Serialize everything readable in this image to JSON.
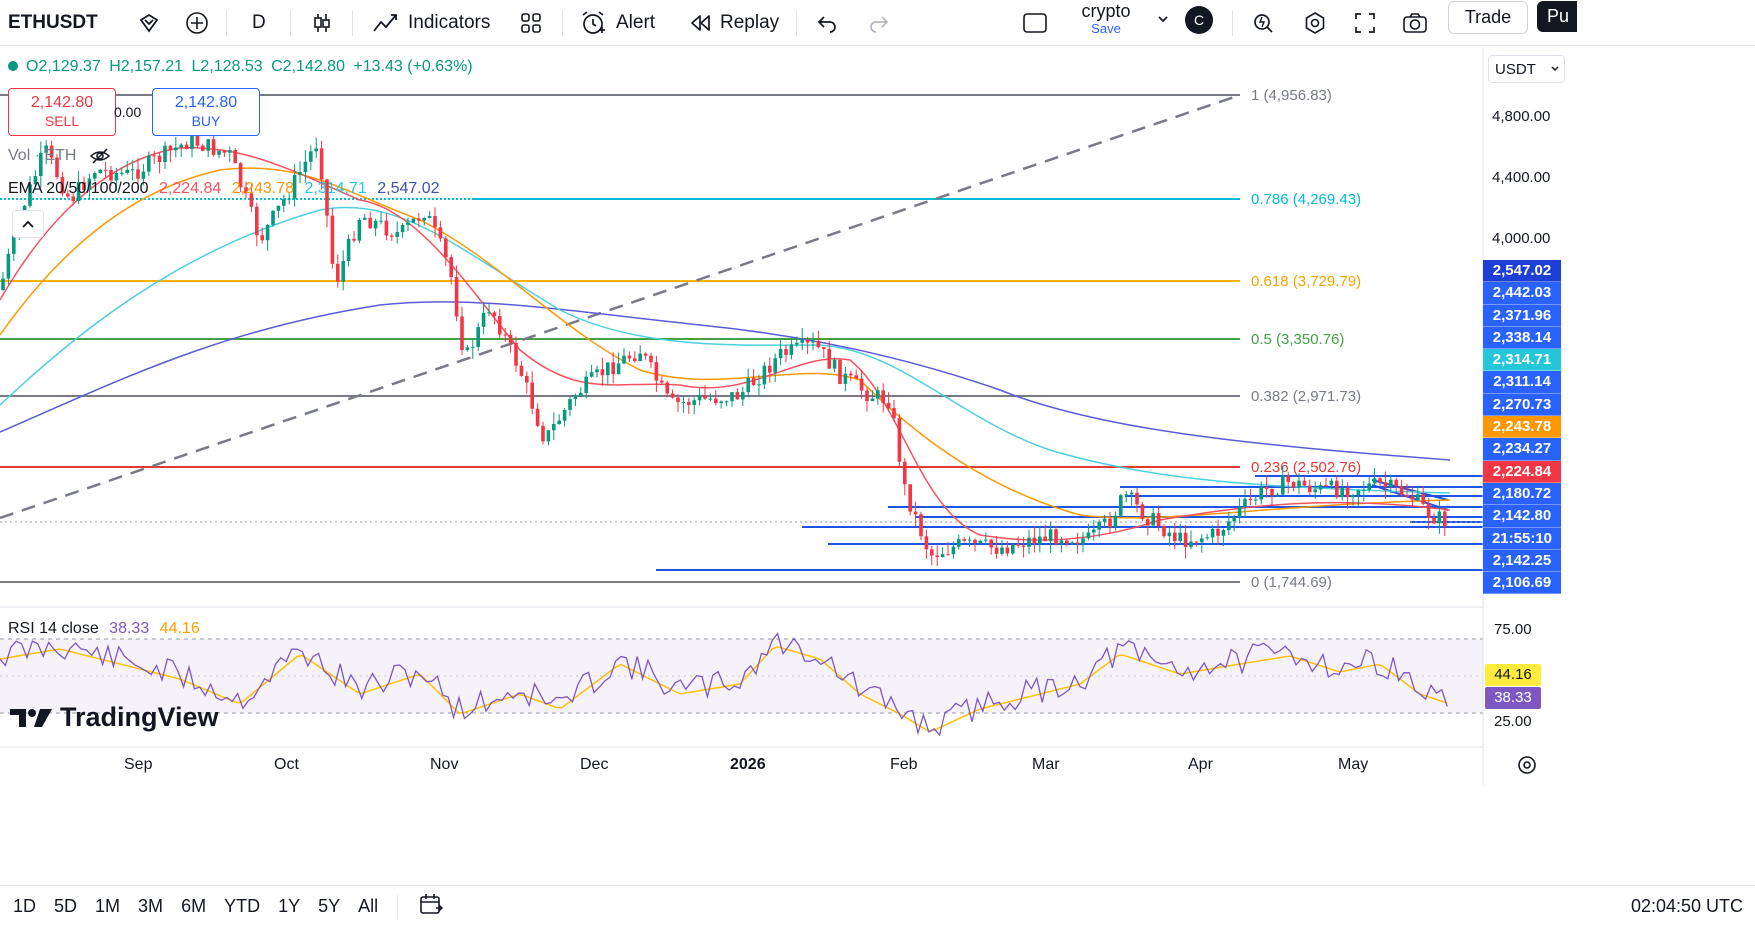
{
  "toolbar": {
    "symbol": "ETHUSDT",
    "interval": "D",
    "indicators_label": "Indicators",
    "alert_label": "Alert",
    "replay_label": "Replay",
    "layout_name": "crypto",
    "layout_save": "Save",
    "avatar_letter": "C",
    "trade_label": "Trade",
    "publish_partial": "Pu"
  },
  "legend": {
    "open": "O2,129.37",
    "high": "H2,157.21",
    "low": "L2,128.53",
    "close": "C2,142.80",
    "change": "+13.43 (+0.63%)",
    "sell_price": "2,142.80",
    "sell_label": "SELL",
    "spread": "0.00",
    "buy_price": "2,142.80",
    "buy_label": "BUY",
    "vol_label": "Vol · ETH",
    "ema_label": "EMA 20/50/100/200",
    "ema20": "2,224.84",
    "ema50": "2,243.78",
    "ema100": "2,314.71",
    "ema200": "2,547.02",
    "rsi_label": "RSI 14 close",
    "rsi_value": "38.33",
    "rsi_ma": "44.16"
  },
  "currency": "USDT",
  "price_axis": [
    "4,800.00",
    "4,400.00",
    "4,000.00"
  ],
  "fib_levels": [
    {
      "label": "1 (4,956.83)",
      "color": "#787b86"
    },
    {
      "label": "0.786 (4,269.43)",
      "color": "#00bcd4"
    },
    {
      "label": "0.618 (3,729.79)",
      "color": "#ffb300"
    },
    {
      "label": "0.5 (3,350.76)",
      "color": "#43a047"
    },
    {
      "label": "0.382 (2,971.73)",
      "color": "#787b86"
    },
    {
      "label": "0.236 (2,502.76)",
      "color": "#e53935"
    },
    {
      "label": "0 (1,744.69)",
      "color": "#787b86"
    }
  ],
  "price_tags": [
    {
      "text": "2,547.02",
      "bg": "#1e3fd6"
    },
    {
      "text": "2,442.03",
      "bg": "#2962ff"
    },
    {
      "text": "2,371.96",
      "bg": "#2962ff"
    },
    {
      "text": "2,338.14",
      "bg": "#2962ff"
    },
    {
      "text": "2,314.71",
      "bg": "#26c6da"
    },
    {
      "text": "2,311.14",
      "bg": "#2962ff"
    },
    {
      "text": "2,270.73",
      "bg": "#2962ff"
    },
    {
      "text": "2,243.78",
      "bg": "#ff9800"
    },
    {
      "text": "2,234.27",
      "bg": "#2962ff"
    },
    {
      "text": "2,224.84",
      "bg": "#f23645"
    },
    {
      "text": "2,180.72",
      "bg": "#2962ff"
    },
    {
      "text": "2,142.80",
      "bg": "#2962ff"
    },
    {
      "text": "21:55:10",
      "bg": "#2962ff"
    },
    {
      "text": "2,142.25",
      "bg": "#2962ff"
    },
    {
      "text": "2,106.69",
      "bg": "#2962ff"
    }
  ],
  "rsi_axis": {
    "top": "75.00",
    "bottom": "25.00",
    "ma_tag": "44.16",
    "rsi_tag": "38.33"
  },
  "time_axis": [
    "Sep",
    "Oct",
    "Nov",
    "Dec",
    "2026",
    "Feb",
    "Mar",
    "Apr",
    "May"
  ],
  "watermark": "TradingView",
  "bottom": {
    "timeframes": [
      "1D",
      "5D",
      "1M",
      "3M",
      "6M",
      "YTD",
      "1Y",
      "5Y",
      "All"
    ],
    "clock": "02:04:50 UTC"
  },
  "colors": {
    "up": "#089981",
    "down": "#f23645",
    "ema20": "#f7525f",
    "ema50": "#ff9800",
    "ema100": "#4dd0e1",
    "ema200": "#5b5bd6",
    "rsi": "#7e57c2",
    "rsi_ma": "#ffc107"
  }
}
